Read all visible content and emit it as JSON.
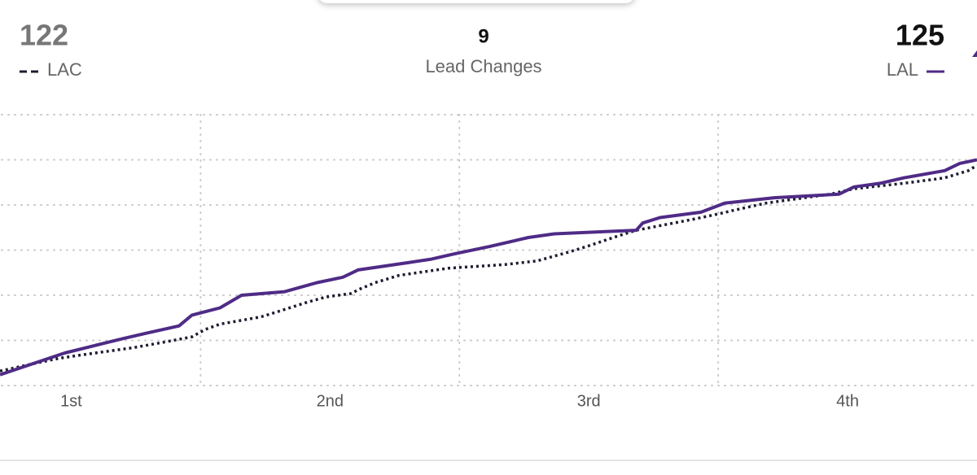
{
  "chart_data": {
    "type": "line",
    "away_score": 122,
    "home_score": 125,
    "lead_changes": 9,
    "lead_changes_label": "Lead Changes",
    "xlim": [
      2.7,
      48
    ],
    "ylim": [
      0,
      150
    ],
    "xticks": [
      {
        "value": 6,
        "label": "1st"
      },
      {
        "value": 18,
        "label": "2nd"
      },
      {
        "value": 30,
        "label": "3rd"
      },
      {
        "value": 42,
        "label": "4th"
      }
    ],
    "xgrid": [
      12,
      24,
      36
    ],
    "ygrid": [
      0,
      25,
      50,
      75,
      100,
      125,
      150
    ],
    "grid": true,
    "series": [
      {
        "name": "LAC",
        "color": "#1c1c30",
        "dashed": true,
        "x": [
          2.7,
          4.2,
          5.4,
          6.5,
          8.9,
          10.3,
          11.6,
          12.2,
          12.9,
          14.8,
          15.6,
          16.9,
          17.8,
          19.0,
          19.3,
          20.1,
          21.2,
          23.5,
          26.1,
          27.6,
          29.1,
          29.9,
          31.4,
          32.2,
          34.8,
          36.0,
          36.7,
          38.2,
          41.2,
          42.3,
          44.6,
          46.5,
          47.6,
          48
        ],
        "values": [
          8,
          12,
          15,
          17,
          21,
          24,
          27,
          31,
          34,
          38,
          41,
          46,
          49,
          51,
          53,
          57,
          61,
          65,
          67,
          69,
          74,
          77,
          83,
          86,
          92,
          95,
          97,
          101,
          106,
          109,
          112,
          115,
          119,
          122
        ]
      },
      {
        "name": "LAL",
        "color": "#4f2b86",
        "dashed": false,
        "x": [
          2.7,
          4.2,
          5.7,
          6.7,
          8.4,
          9.5,
          11.0,
          11.6,
          12.9,
          13.9,
          15.9,
          17.4,
          18.6,
          19.3,
          21.6,
          22.7,
          23.8,
          25.4,
          27.2,
          28.4,
          32.2,
          32.5,
          33.3,
          35.2,
          36.3,
          38.6,
          41.6,
          42.3,
          43.5,
          44.6,
          46.5,
          47.2,
          48
        ],
        "values": [
          6,
          12,
          18,
          21,
          26,
          29,
          33,
          39,
          43,
          50,
          52,
          57,
          60,
          64,
          68,
          70,
          73,
          77,
          82,
          84,
          86,
          90,
          93,
          96,
          101,
          104,
          106,
          110,
          112,
          115,
          119,
          123,
          125
        ]
      }
    ]
  }
}
